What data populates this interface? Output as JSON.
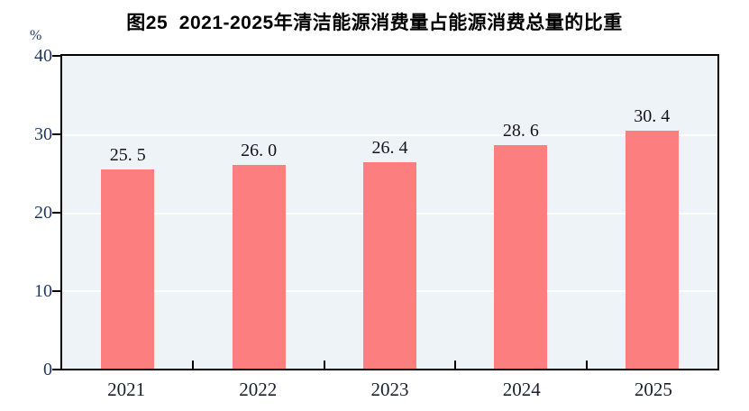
{
  "title": "图25  2021-2025年清洁能源消费量占能源消费总量的比重",
  "y_axis": {
    "unit": "%",
    "ticks": [
      "40",
      "30",
      "20",
      "10",
      "0"
    ]
  },
  "chart_data": {
    "type": "bar",
    "title": "图25 2021-2025年清洁能源消费量占能源消费总量的比重",
    "categories": [
      "2021",
      "2022",
      "2023",
      "2024",
      "2025"
    ],
    "values": [
      25.5,
      26.0,
      26.4,
      28.6,
      30.4
    ],
    "display_labels": [
      "25. 5",
      "26. 0",
      "26. 4",
      "28. 6",
      "30. 4"
    ],
    "xlabel": "",
    "ylabel": "%",
    "ylim": [
      0,
      40
    ],
    "y_tick_step": 10,
    "grid": "horizontal white gridlines at 10, 20, 30",
    "legend_position": "none",
    "bar_color": "#FC7E7E",
    "plot_bg_color": "#EDF3F7",
    "grid_color": "#FFFFFF",
    "axis_color": "#000000",
    "axis_tick_label_color": "#1F3864",
    "data_label_color": "#14141E"
  }
}
